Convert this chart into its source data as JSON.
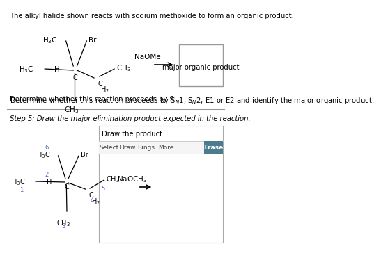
{
  "bg_color": "#ffffff",
  "top_text": "The alkyl halide shown reacts with sodium methoxide to form an organic product.",
  "determine_text": "Determine whether this reaction proceeds by S$_N$1, S$_N$2, E1 or E2 and identify the major organic product.",
  "step_text": "Step 5: Draw the major elimination product expected in the reaction.",
  "draw_text": "Draw the product.",
  "toolbar_items": [
    "Select",
    "Draw",
    "Rings",
    "More"
  ],
  "erase_btn": "Erase",
  "erase_color": "#4a7c8e",
  "naome_label": "NaOMe",
  "naoch3_label": "NaOCH$_3$",
  "major_product_text": "major organic product",
  "box_edge_color": "#888888",
  "toolbar_line_color": "#cccccc",
  "blue_label_color": "#4466cc",
  "separator_color": "#999999",
  "mol_line_color": "#000000"
}
